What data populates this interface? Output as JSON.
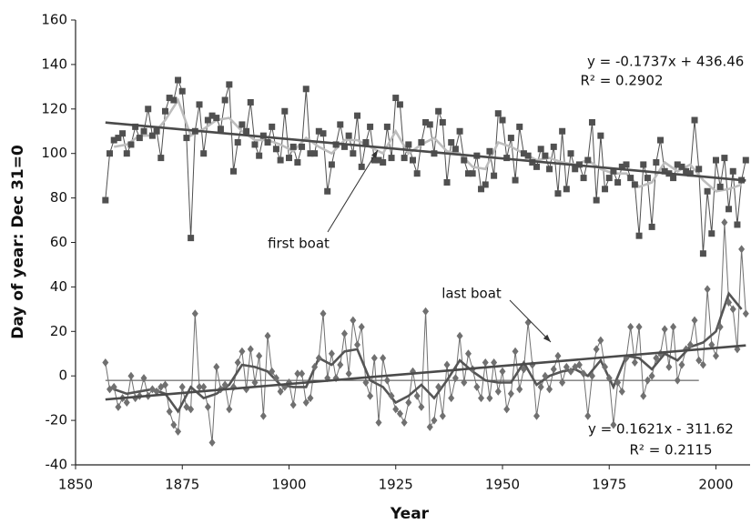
{
  "chart_data": {
    "type": "line",
    "x_label": "Year",
    "y_label": "Day of year: Dec 31=0",
    "xlim": [
      1850,
      2008
    ],
    "xticks": [
      1850,
      1875,
      1900,
      1925,
      1950,
      1975,
      2000
    ],
    "ylim": [
      -40,
      160
    ],
    "yticks": [
      -40,
      -20,
      0,
      20,
      40,
      60,
      80,
      100,
      120,
      140,
      160
    ],
    "grid": false,
    "x": [
      1857,
      1858,
      1859,
      1860,
      1861,
      1862,
      1863,
      1864,
      1865,
      1866,
      1867,
      1868,
      1869,
      1870,
      1871,
      1872,
      1873,
      1874,
      1875,
      1876,
      1877,
      1878,
      1879,
      1880,
      1881,
      1882,
      1883,
      1884,
      1885,
      1886,
      1887,
      1888,
      1889,
      1890,
      1891,
      1892,
      1893,
      1894,
      1895,
      1896,
      1897,
      1898,
      1899,
      1900,
      1901,
      1902,
      1903,
      1904,
      1905,
      1906,
      1907,
      1908,
      1909,
      1910,
      1911,
      1912,
      1913,
      1914,
      1915,
      1916,
      1917,
      1918,
      1919,
      1920,
      1921,
      1922,
      1923,
      1924,
      1925,
      1926,
      1927,
      1928,
      1929,
      1930,
      1931,
      1932,
      1933,
      1934,
      1935,
      1936,
      1937,
      1938,
      1939,
      1940,
      1941,
      1942,
      1943,
      1944,
      1945,
      1946,
      1947,
      1948,
      1949,
      1950,
      1951,
      1952,
      1953,
      1954,
      1955,
      1956,
      1957,
      1958,
      1959,
      1960,
      1961,
      1962,
      1963,
      1964,
      1965,
      1966,
      1967,
      1968,
      1969,
      1970,
      1971,
      1972,
      1973,
      1974,
      1975,
      1976,
      1977,
      1978,
      1979,
      1980,
      1981,
      1982,
      1983,
      1984,
      1985,
      1986,
      1987,
      1988,
      1989,
      1990,
      1991,
      1992,
      1993,
      1994,
      1995,
      1996,
      1997,
      1998,
      1999,
      2000,
      2001,
      2002,
      2003,
      2004,
      2005,
      2006,
      2007
    ],
    "series": [
      {
        "name": "first boat",
        "color": "#505050",
        "marker": "square",
        "values": [
          79,
          100,
          106,
          107,
          109,
          100,
          104,
          112,
          107,
          110,
          120,
          108,
          110,
          98,
          119,
          125,
          124,
          133,
          128,
          107,
          62,
          110,
          122,
          100,
          115,
          117,
          116,
          111,
          124,
          131,
          92,
          105,
          113,
          110,
          123,
          104,
          99,
          108,
          105,
          112,
          102,
          97,
          119,
          98,
          103,
          96,
          103,
          129,
          100,
          100,
          110,
          109,
          83,
          95,
          104,
          113,
          103,
          108,
          100,
          117,
          94,
          105,
          112,
          97,
          97,
          96,
          112,
          98,
          125,
          122,
          98,
          104,
          97,
          91,
          105,
          114,
          113,
          100,
          119,
          114,
          87,
          105,
          102,
          110,
          97,
          91,
          91,
          99,
          84,
          86,
          101,
          90,
          118,
          115,
          98,
          107,
          88,
          112,
          100,
          99,
          96,
          94,
          102,
          99,
          93,
          103,
          82,
          110,
          84,
          100,
          93,
          95,
          89,
          97,
          114,
          79,
          108,
          84,
          89,
          92,
          87,
          94,
          95,
          89,
          86,
          63,
          95,
          89,
          67,
          96,
          106,
          92,
          91,
          89,
          95,
          94,
          92,
          91,
          115,
          93,
          55,
          83,
          64,
          97,
          85,
          98,
          75,
          92,
          68,
          88,
          97
        ]
      },
      {
        "name": "last boat",
        "color": "#707070",
        "marker": "diamond",
        "values": [
          6,
          -6,
          -5,
          -14,
          -10,
          -12,
          0,
          -10,
          -9,
          -1,
          -9,
          -6,
          -7,
          -5,
          -4,
          -16,
          -22,
          -25,
          -5,
          -14,
          -15,
          28,
          -5,
          -5,
          -14,
          -30,
          4,
          -6,
          -4,
          -15,
          -5,
          6,
          11,
          -6,
          12,
          -3,
          9,
          -18,
          18,
          2,
          -1,
          -7,
          -5,
          -3,
          -13,
          1,
          1,
          -12,
          -10,
          4,
          8,
          28,
          -1,
          10,
          -1,
          5,
          19,
          1,
          25,
          14,
          22,
          -3,
          -9,
          8,
          -21,
          8,
          -2,
          -9,
          -15,
          -17,
          -21,
          -12,
          2,
          -9,
          -14,
          29,
          -23,
          -20,
          -5,
          -18,
          5,
          -10,
          -1,
          18,
          -3,
          10,
          3,
          -5,
          -10,
          6,
          -10,
          6,
          -7,
          2,
          -15,
          -8,
          11,
          -6,
          3,
          24,
          5,
          -18,
          -5,
          0,
          -6,
          3,
          9,
          -3,
          4,
          2,
          4,
          5,
          1,
          -18,
          0,
          12,
          16,
          4,
          -1,
          -22,
          -3,
          -7,
          8,
          22,
          6,
          22,
          -9,
          -2,
          0,
          8,
          10,
          21,
          4,
          22,
          -2,
          5,
          12,
          14,
          25,
          7,
          5,
          39,
          14,
          9,
          22,
          69,
          33,
          30,
          12,
          57,
          28
        ]
      }
    ],
    "moving_averages": [
      {
        "color": "#bdbdbd",
        "x": [
          1859,
          1862,
          1865,
          1868,
          1871,
          1874,
          1877,
          1880,
          1883,
          1886,
          1889,
          1892,
          1895,
          1898,
          1901,
          1904,
          1907,
          1910,
          1913,
          1916,
          1919,
          1922,
          1925,
          1928,
          1931,
          1934,
          1937,
          1940,
          1943,
          1946,
          1949,
          1952,
          1955,
          1958,
          1961,
          1964,
          1967,
          1970,
          1973,
          1976,
          1979,
          1982,
          1985,
          1988,
          1991,
          1994,
          1997,
          2000,
          2003,
          2006
        ],
        "values": [
          103,
          104,
          108,
          108,
          115,
          124,
          108,
          111,
          115,
          116,
          110,
          106,
          106,
          104,
          101,
          107,
          103,
          100,
          106,
          106,
          103,
          100,
          110,
          100,
          104,
          107,
          101,
          100,
          94,
          93,
          105,
          103,
          100,
          97,
          98,
          96,
          95,
          97,
          93,
          91,
          91,
          85,
          87,
          96,
          92,
          95,
          88,
          83,
          84,
          86
        ]
      },
      {
        "color": "#555555",
        "x": [
          1859,
          1862,
          1865,
          1868,
          1871,
          1874,
          1877,
          1880,
          1883,
          1886,
          1889,
          1892,
          1895,
          1898,
          1901,
          1904,
          1907,
          1910,
          1913,
          1916,
          1919,
          1922,
          1925,
          1928,
          1931,
          1934,
          1937,
          1940,
          1943,
          1946,
          1949,
          1952,
          1955,
          1958,
          1961,
          1964,
          1967,
          1970,
          1973,
          1976,
          1979,
          1982,
          1985,
          1988,
          1991,
          1994,
          1997,
          2000,
          2003,
          2006
        ],
        "values": [
          -6,
          -8,
          -7,
          -6,
          -8,
          -16,
          -5,
          -10,
          -8,
          -4,
          5,
          4,
          2,
          -4,
          -5,
          -5,
          8,
          5,
          11,
          12,
          -2,
          -5,
          -12,
          -9,
          -4,
          -10,
          -2,
          7,
          2,
          -2,
          -3,
          -3,
          6,
          -4,
          0,
          2,
          3,
          0,
          7,
          -5,
          9,
          8,
          3,
          10,
          7,
          13,
          15,
          20,
          37,
          30
        ]
      }
    ],
    "trends": [
      {
        "slope": -0.1737,
        "intercept": 436.46,
        "x": [
          1857,
          2007
        ],
        "color": "#4a4a4a",
        "equation": "y = -0.1737x + 436.46",
        "r2": "R² = 0.2902"
      },
      {
        "slope": 0.1621,
        "intercept": -311.62,
        "x": [
          1857,
          2007
        ],
        "color": "#4a4a4a",
        "equation": "y = 0.1621x - 311.62",
        "r2": "R² = 0.2115"
      }
    ],
    "reference_line": {
      "y": -2,
      "x": [
        1857,
        1996
      ]
    }
  }
}
